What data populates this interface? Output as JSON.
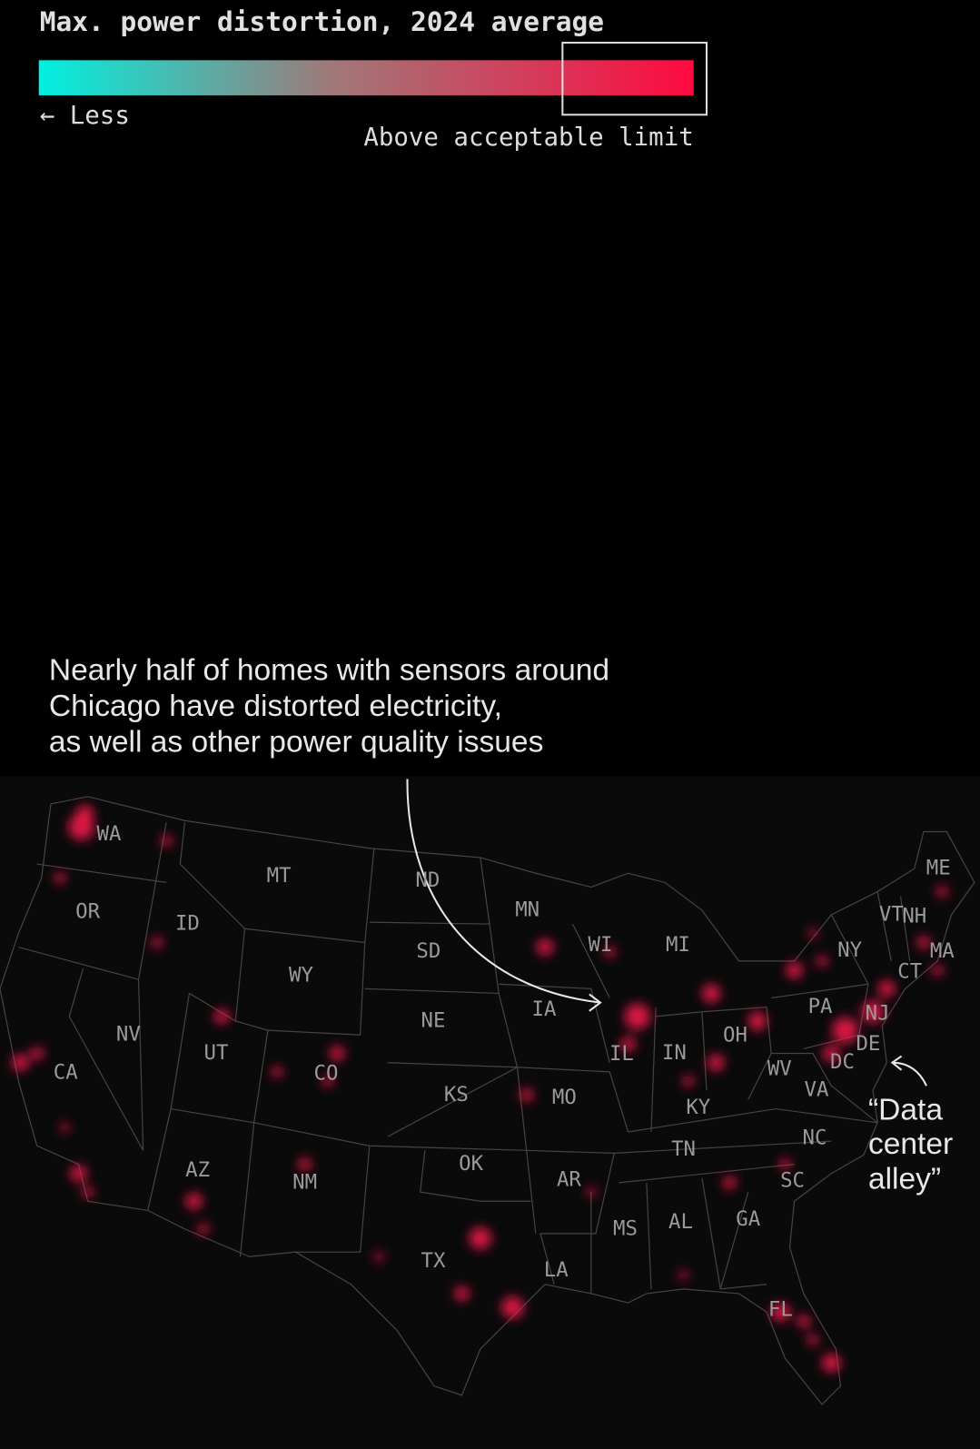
{
  "legend": {
    "title": "Max. power distortion, 2024 average",
    "less": "← Less",
    "above": "Above acceptable limit"
  },
  "annotations": {
    "chicago": [
      "Nearly half of homes with sensors around",
      "Chicago have distorted electricity,",
      "as well as other power quality issues"
    ],
    "data_center_alley": [
      "“Data",
      "center",
      "alley”"
    ]
  },
  "states": [
    "WA",
    "OR",
    "ID",
    "MT",
    "ND",
    "SD",
    "WY",
    "NV",
    "UT",
    "CA",
    "CO",
    "NE",
    "KS",
    "AZ",
    "NM",
    "OK",
    "TX",
    "MN",
    "IA",
    "MO",
    "AR",
    "LA",
    "WI",
    "IL",
    "MI",
    "IN",
    "OH",
    "KY",
    "TN",
    "MS",
    "AL",
    "GA",
    "FL",
    "SC",
    "NC",
    "VA",
    "WV",
    "PA",
    "NY",
    "DC",
    "DE",
    "NJ",
    "MA",
    "CT",
    "VT",
    "NH",
    "ME"
  ]
}
